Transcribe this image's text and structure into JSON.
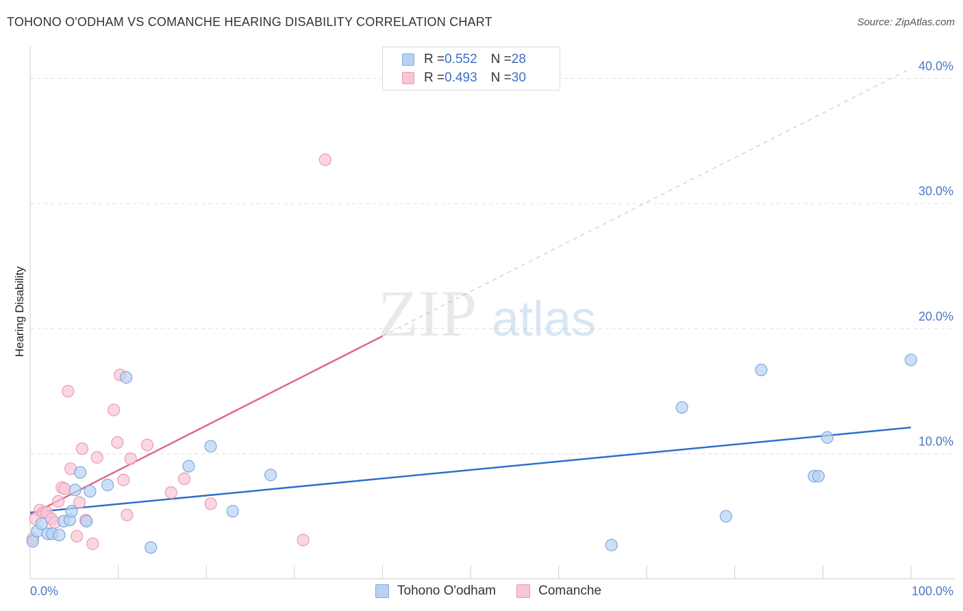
{
  "title": "TOHONO O'ODHAM VS COMANCHE HEARING DISABILITY CORRELATION CHART",
  "source": "Source: ZipAtlas.com",
  "watermark": {
    "zip": "ZIP",
    "atlas": "atlas"
  },
  "legend": {
    "rows": [
      {
        "r_label": "R = ",
        "r_value": "0.552",
        "n_label": "N = ",
        "n_value": "28"
      },
      {
        "r_label": "R = ",
        "r_value": "0.493",
        "n_label": "N = ",
        "n_value": "30"
      }
    ]
  },
  "colors": {
    "blue_fill": "#b8d2f3",
    "blue_stroke": "#7fa8dc",
    "blue_line": "#2f6fcc",
    "pink_fill": "#f8c6d4",
    "pink_stroke": "#eb99b2",
    "pink_line": "#e0648e",
    "tick_text": "#4a78c8",
    "grid": "#dddddd"
  },
  "chart_data": {
    "type": "scatter",
    "title": "TOHONO O'ODHAM VS COMANCHE HEARING DISABILITY CORRELATION CHART",
    "xlabel": "",
    "ylabel": "Hearing Disability",
    "xlim": [
      0,
      100
    ],
    "ylim": [
      0,
      42
    ],
    "x_tick_labels": [
      "0.0%",
      "100.0%"
    ],
    "y_ticks": [
      10,
      20,
      30,
      40
    ],
    "y_tick_labels": [
      "10.0%",
      "20.0%",
      "30.0%",
      "40.0%"
    ],
    "grid": true,
    "legend_position": "bottom",
    "series": [
      {
        "name": "Tohono O'odham",
        "color": "#b8d2f3",
        "points": [
          [
            0.3,
            3.0
          ],
          [
            0.8,
            3.8
          ],
          [
            1.3,
            4.4
          ],
          [
            2.0,
            3.6
          ],
          [
            2.5,
            3.6
          ],
          [
            3.3,
            3.5
          ],
          [
            3.8,
            4.6
          ],
          [
            4.5,
            4.7
          ],
          [
            4.7,
            5.4
          ],
          [
            5.1,
            7.1
          ],
          [
            5.7,
            8.5
          ],
          [
            6.4,
            4.6
          ],
          [
            6.8,
            7.0
          ],
          [
            8.8,
            7.5
          ],
          [
            10.9,
            16.1
          ],
          [
            13.7,
            2.5
          ],
          [
            18.0,
            9.0
          ],
          [
            20.5,
            10.6
          ],
          [
            23.0,
            5.4
          ],
          [
            27.3,
            8.3
          ],
          [
            66.0,
            2.7
          ],
          [
            74.0,
            13.7
          ],
          [
            79.0,
            5.0
          ],
          [
            83.0,
            16.7
          ],
          [
            89.0,
            8.2
          ],
          [
            89.5,
            8.2
          ],
          [
            90.5,
            11.3
          ],
          [
            100.0,
            17.5
          ]
        ],
        "trend": {
          "x": [
            0,
            100
          ],
          "y": [
            5.3,
            12.1
          ]
        }
      },
      {
        "name": "Comanche",
        "color": "#f8c6d4",
        "points": [
          [
            0.3,
            3.2
          ],
          [
            0.6,
            4.8
          ],
          [
            1.1,
            5.5
          ],
          [
            1.5,
            5.3
          ],
          [
            1.9,
            5.3
          ],
          [
            2.4,
            4.8
          ],
          [
            2.8,
            4.5
          ],
          [
            3.2,
            6.2
          ],
          [
            3.6,
            7.3
          ],
          [
            3.9,
            7.2
          ],
          [
            4.3,
            15.0
          ],
          [
            4.6,
            8.8
          ],
          [
            5.3,
            3.4
          ],
          [
            5.6,
            6.1
          ],
          [
            5.9,
            10.4
          ],
          [
            6.3,
            4.7
          ],
          [
            7.1,
            2.8
          ],
          [
            7.6,
            9.7
          ],
          [
            9.5,
            13.5
          ],
          [
            9.9,
            10.9
          ],
          [
            10.2,
            16.3
          ],
          [
            10.6,
            7.9
          ],
          [
            11.0,
            5.1
          ],
          [
            11.4,
            9.6
          ],
          [
            13.3,
            10.7
          ],
          [
            16.0,
            6.9
          ],
          [
            17.5,
            8.0
          ],
          [
            20.5,
            6.0
          ],
          [
            31.0,
            3.1
          ],
          [
            33.5,
            33.5
          ]
        ],
        "trend": {
          "x": [
            0,
            40
          ],
          "y": [
            5.1,
            19.4
          ]
        },
        "trend_extension": {
          "x": [
            40,
            100
          ],
          "y": [
            19.4,
            40.8
          ]
        }
      }
    ]
  }
}
